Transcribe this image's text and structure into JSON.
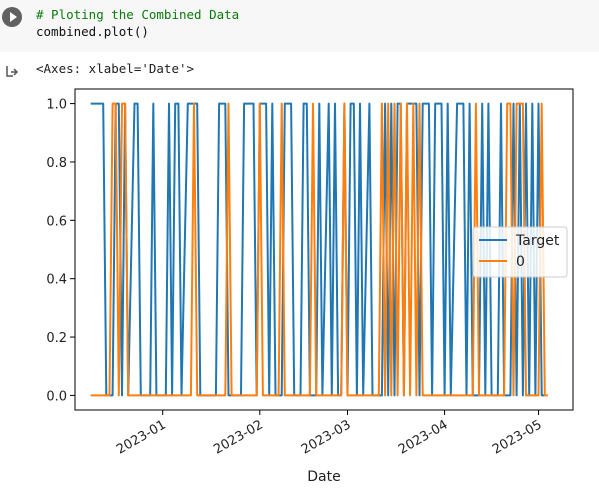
{
  "cell": {
    "comment": "# Ploting the Combined Data",
    "code": "combined.plot()",
    "output_repr": "<Axes: xlabel='Date'>"
  },
  "icons": {
    "run": "play-icon",
    "output": "output-arrow-icon"
  },
  "chart_data": {
    "type": "line",
    "xlabel": "Date",
    "ylabel": "",
    "xlim": [
      "2022-12-04",
      "2023-05-12"
    ],
    "ylim": [
      -0.05,
      1.05
    ],
    "x_ticks": [
      "2023-01",
      "2023-02",
      "2023-03",
      "2023-04",
      "2023-05"
    ],
    "y_ticks": [
      "0.0",
      "0.2",
      "0.4",
      "0.6",
      "0.8",
      "1.0"
    ],
    "legend": {
      "position": "center-right",
      "entries": [
        "Target",
        "0"
      ]
    },
    "grid": false,
    "series": [
      {
        "name": "Target",
        "color": "#1f77b4",
        "points": [
          [
            "2022-12-09",
            1
          ],
          [
            "2022-12-13",
            1
          ],
          [
            "2022-12-14",
            0
          ],
          [
            "2022-12-16",
            0
          ],
          [
            "2022-12-17",
            1
          ],
          [
            "2022-12-18",
            1
          ],
          [
            "2022-12-19",
            0
          ],
          [
            "2022-12-20",
            1
          ],
          [
            "2022-12-21",
            0
          ],
          [
            "2022-12-23",
            1
          ],
          [
            "2022-12-24",
            1
          ],
          [
            "2022-12-25",
            0
          ],
          [
            "2022-12-28",
            0
          ],
          [
            "2022-12-29",
            1
          ],
          [
            "2022-12-30",
            0
          ],
          [
            "2023-01-02",
            0
          ],
          [
            "2023-01-03",
            1
          ],
          [
            "2023-01-04",
            0
          ],
          [
            "2023-01-05",
            1
          ],
          [
            "2023-01-06",
            1
          ],
          [
            "2023-01-07",
            0
          ],
          [
            "2023-01-09",
            1
          ],
          [
            "2023-01-12",
            1
          ],
          [
            "2023-01-13",
            0
          ],
          [
            "2023-01-18",
            0
          ],
          [
            "2023-01-19",
            1
          ],
          [
            "2023-01-21",
            1
          ],
          [
            "2023-01-22",
            0
          ],
          [
            "2023-01-26",
            0
          ],
          [
            "2023-01-27",
            1
          ],
          [
            "2023-01-30",
            1
          ],
          [
            "2023-01-31",
            0
          ],
          [
            "2023-02-01",
            1
          ],
          [
            "2023-02-03",
            1
          ],
          [
            "2023-02-04",
            0
          ],
          [
            "2023-02-05",
            1
          ],
          [
            "2023-02-06",
            0
          ],
          [
            "2023-02-08",
            0
          ],
          [
            "2023-02-09",
            1
          ],
          [
            "2023-02-11",
            1
          ],
          [
            "2023-02-12",
            0
          ],
          [
            "2023-02-14",
            0
          ],
          [
            "2023-02-15",
            1
          ],
          [
            "2023-02-16",
            1
          ],
          [
            "2023-02-17",
            0
          ],
          [
            "2023-02-19",
            0
          ],
          [
            "2023-02-20",
            1
          ],
          [
            "2023-02-21",
            0
          ],
          [
            "2023-02-23",
            1
          ],
          [
            "2023-02-24",
            0
          ],
          [
            "2023-02-25",
            1
          ],
          [
            "2023-02-26",
            0
          ],
          [
            "2023-02-27",
            0
          ],
          [
            "2023-02-28",
            1
          ],
          [
            "2023-03-01",
            0
          ],
          [
            "2023-03-02",
            1
          ],
          [
            "2023-03-03",
            1
          ],
          [
            "2023-03-04",
            0
          ],
          [
            "2023-03-05",
            1
          ],
          [
            "2023-03-06",
            0
          ],
          [
            "2023-03-08",
            1
          ],
          [
            "2023-03-09",
            0
          ],
          [
            "2023-03-12",
            0
          ],
          [
            "2023-03-13",
            1
          ],
          [
            "2023-03-14",
            0
          ],
          [
            "2023-03-15",
            1
          ],
          [
            "2023-03-16",
            0
          ],
          [
            "2023-03-17",
            1
          ],
          [
            "2023-03-18",
            1
          ],
          [
            "2023-03-19",
            0
          ],
          [
            "2023-03-20",
            1
          ],
          [
            "2023-03-23",
            1
          ],
          [
            "2023-03-24",
            0
          ],
          [
            "2023-03-25",
            1
          ],
          [
            "2023-03-27",
            1
          ],
          [
            "2023-03-28",
            0
          ],
          [
            "2023-03-29",
            1
          ],
          [
            "2023-03-31",
            1
          ],
          [
            "2023-04-01",
            0
          ],
          [
            "2023-04-02",
            1
          ],
          [
            "2023-04-03",
            0
          ],
          [
            "2023-04-05",
            1
          ],
          [
            "2023-04-07",
            1
          ],
          [
            "2023-04-08",
            0
          ],
          [
            "2023-04-09",
            1
          ],
          [
            "2023-04-10",
            0
          ],
          [
            "2023-04-12",
            0
          ],
          [
            "2023-04-13",
            1
          ],
          [
            "2023-04-14",
            0
          ],
          [
            "2023-04-15",
            1
          ],
          [
            "2023-04-16",
            0
          ],
          [
            "2023-04-18",
            0
          ],
          [
            "2023-04-19",
            1
          ],
          [
            "2023-04-20",
            0
          ],
          [
            "2023-04-22",
            0
          ],
          [
            "2023-04-23",
            1
          ],
          [
            "2023-04-24",
            0
          ],
          [
            "2023-04-25",
            1
          ],
          [
            "2023-04-26",
            0
          ],
          [
            "2023-04-27",
            1
          ],
          [
            "2023-04-28",
            0
          ],
          [
            "2023-04-29",
            1
          ],
          [
            "2023-04-30",
            0
          ],
          [
            "2023-05-01",
            1
          ],
          [
            "2023-05-02",
            0
          ],
          [
            "2023-05-03",
            0
          ]
        ]
      },
      {
        "name": "0",
        "color": "#ff7f0e",
        "points": [
          [
            "2022-12-09",
            0
          ],
          [
            "2022-12-15",
            0
          ],
          [
            "2022-12-16",
            1
          ],
          [
            "2022-12-17",
            1
          ],
          [
            "2022-12-18",
            0
          ],
          [
            "2022-12-19",
            1
          ],
          [
            "2022-12-20",
            1
          ],
          [
            "2022-12-21",
            0
          ],
          [
            "2023-01-10",
            0
          ],
          [
            "2023-01-11",
            1
          ],
          [
            "2023-01-12",
            0
          ],
          [
            "2023-01-21",
            0
          ],
          [
            "2023-01-22",
            1
          ],
          [
            "2023-01-23",
            0
          ],
          [
            "2023-01-31",
            0
          ],
          [
            "2023-02-01",
            1
          ],
          [
            "2023-02-02",
            0
          ],
          [
            "2023-02-07",
            0
          ],
          [
            "2023-02-08",
            1
          ],
          [
            "2023-02-09",
            0
          ],
          [
            "2023-02-17",
            0
          ],
          [
            "2023-02-18",
            1
          ],
          [
            "2023-02-19",
            0
          ],
          [
            "2023-02-27",
            0
          ],
          [
            "2023-02-28",
            1
          ],
          [
            "2023-03-01",
            0
          ],
          [
            "2023-03-11",
            0
          ],
          [
            "2023-03-12",
            1
          ],
          [
            "2023-03-13",
            0
          ],
          [
            "2023-03-14",
            1
          ],
          [
            "2023-03-15",
            0
          ],
          [
            "2023-03-16",
            1
          ],
          [
            "2023-03-17",
            0
          ],
          [
            "2023-03-18",
            1
          ],
          [
            "2023-03-19",
            0
          ],
          [
            "2023-03-20",
            1
          ],
          [
            "2023-03-21",
            0
          ],
          [
            "2023-03-22",
            1
          ],
          [
            "2023-03-23",
            0
          ],
          [
            "2023-03-24",
            1
          ],
          [
            "2023-03-25",
            0
          ],
          [
            "2023-04-10",
            0
          ],
          [
            "2023-04-11",
            1
          ],
          [
            "2023-04-12",
            0
          ],
          [
            "2023-04-20",
            0
          ],
          [
            "2023-04-21",
            1
          ],
          [
            "2023-04-22",
            1
          ],
          [
            "2023-04-23",
            0
          ],
          [
            "2023-04-24",
            1
          ],
          [
            "2023-04-26",
            1
          ],
          [
            "2023-04-27",
            0
          ],
          [
            "2023-05-01",
            0
          ],
          [
            "2023-05-02",
            1
          ],
          [
            "2023-05-03",
            0
          ],
          [
            "2023-05-04",
            0
          ]
        ]
      }
    ]
  }
}
